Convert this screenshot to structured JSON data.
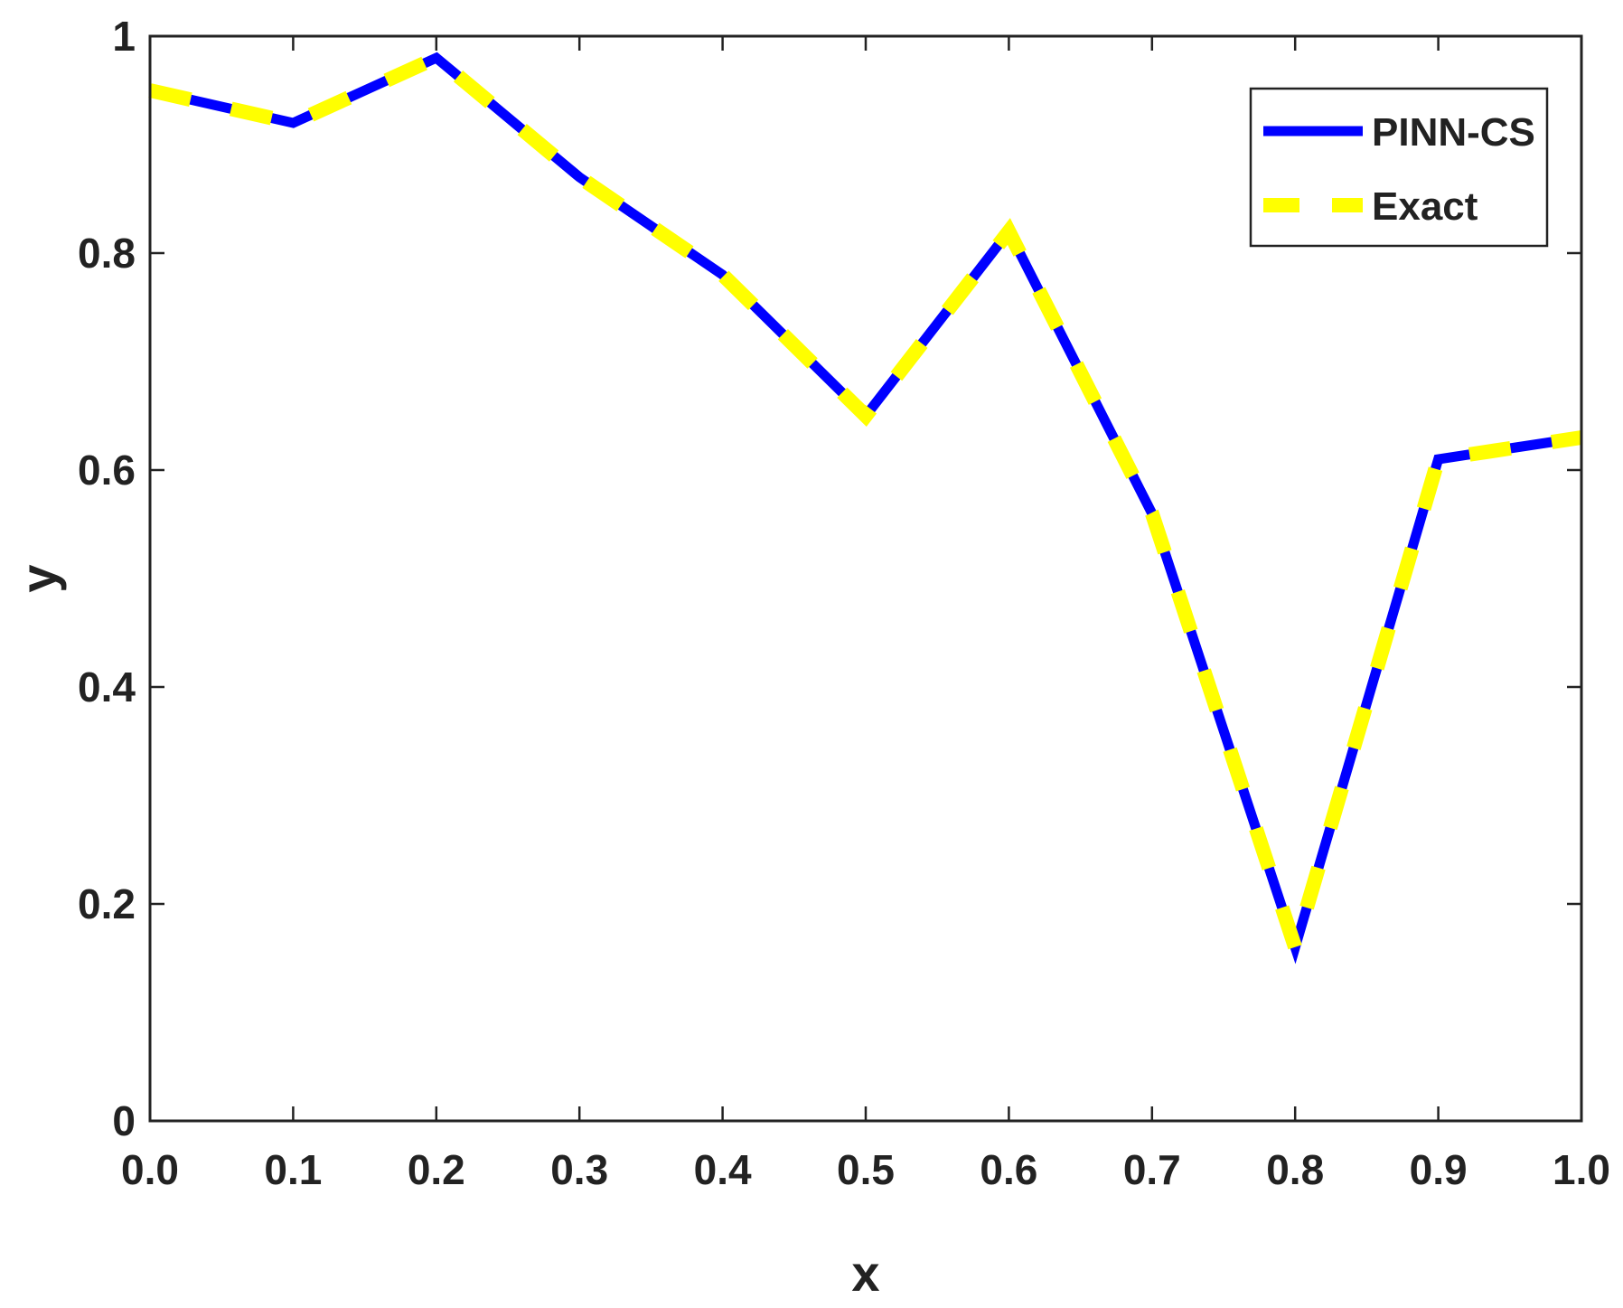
{
  "chart_data": {
    "type": "line",
    "title": "",
    "xlabel": "x",
    "ylabel": "y",
    "xlim": [
      0,
      1
    ],
    "ylim": [
      0,
      1
    ],
    "xticks": [
      "0.0",
      "0.1",
      "0.2",
      "0.3",
      "0.4",
      "0.5",
      "0.6",
      "0.7",
      "0.8",
      "0.9",
      "1.0"
    ],
    "yticks": [
      "0",
      "0.2",
      "0.4",
      "0.6",
      "0.8",
      "1"
    ],
    "grid": false,
    "legend_position": "top-right",
    "x": [
      0.0,
      0.1,
      0.2,
      0.3,
      0.4,
      0.5,
      0.6,
      0.7,
      0.8,
      0.9,
      1.0
    ],
    "series": [
      {
        "name": "PINN-CS",
        "color": "#0000ff",
        "style": "solid",
        "values": [
          0.95,
          0.92,
          0.98,
          0.87,
          0.78,
          0.65,
          0.82,
          0.56,
          0.16,
          0.61,
          0.63
        ]
      },
      {
        "name": "Exact",
        "color": "#ffff00",
        "style": "dashed",
        "values": [
          0.95,
          0.92,
          0.98,
          0.87,
          0.78,
          0.65,
          0.82,
          0.56,
          0.16,
          0.61,
          0.63
        ]
      }
    ]
  }
}
